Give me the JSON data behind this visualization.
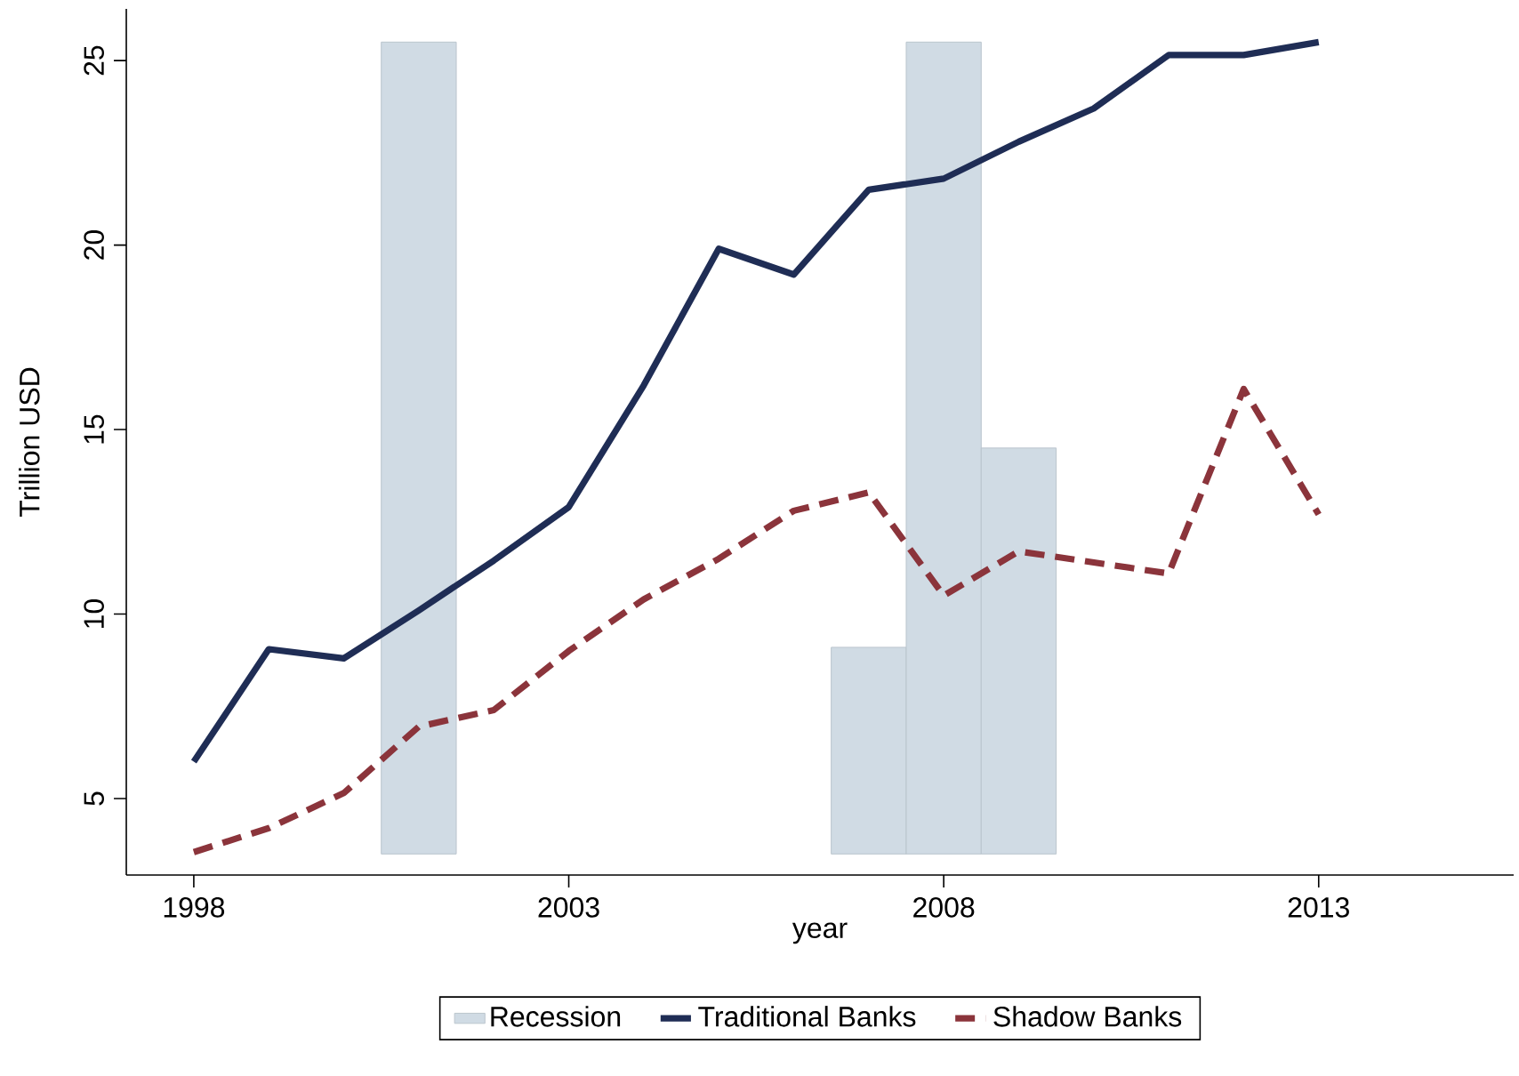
{
  "chart_data": {
    "type": "line",
    "xlabel": "year",
    "ylabel": "Trillion USD",
    "xlim": [
      1997.1,
      2015.6
    ],
    "xticks": [
      1998,
      2003,
      2008,
      2013
    ],
    "ylim": [
      2.93,
      26.4
    ],
    "yticks": [
      5,
      10,
      15,
      20,
      25
    ],
    "legend": "bottom",
    "series": [
      {
        "name": "Recession",
        "type": "bar",
        "color": "#d0dbe4",
        "x": [
          2001,
          2007,
          2008,
          2009
        ],
        "base": [
          3.5,
          3.5,
          3.5,
          3.5
        ],
        "values": [
          22,
          5.6,
          22,
          11
        ]
      },
      {
        "name": "Traditional Banks",
        "line_style": "solid",
        "color": "#1f2d55",
        "x": [
          1998,
          1999,
          2000,
          2001,
          2002,
          2003,
          2004,
          2005,
          2006,
          2007,
          2008,
          2009,
          2010,
          2011,
          2012,
          2013
        ],
        "values": [
          6.0,
          9.05,
          8.8,
          10.1,
          11.45,
          12.9,
          16.2,
          19.9,
          19.2,
          21.5,
          21.8,
          22.8,
          23.7,
          25.15,
          25.15,
          25.5
        ]
      },
      {
        "name": "Shadow Banks",
        "line_style": "dashed",
        "color": "#8b343b",
        "x": [
          1998,
          1999,
          2000,
          2001,
          2002,
          2003,
          2004,
          2005,
          2006,
          2007,
          2008,
          2009,
          2010,
          2011,
          2012,
          2013
        ],
        "values": [
          3.55,
          4.2,
          5.15,
          6.95,
          7.4,
          9.0,
          10.4,
          11.5,
          12.8,
          13.3,
          10.5,
          11.7,
          11.4,
          11.1,
          16.1,
          12.7
        ]
      }
    ]
  }
}
